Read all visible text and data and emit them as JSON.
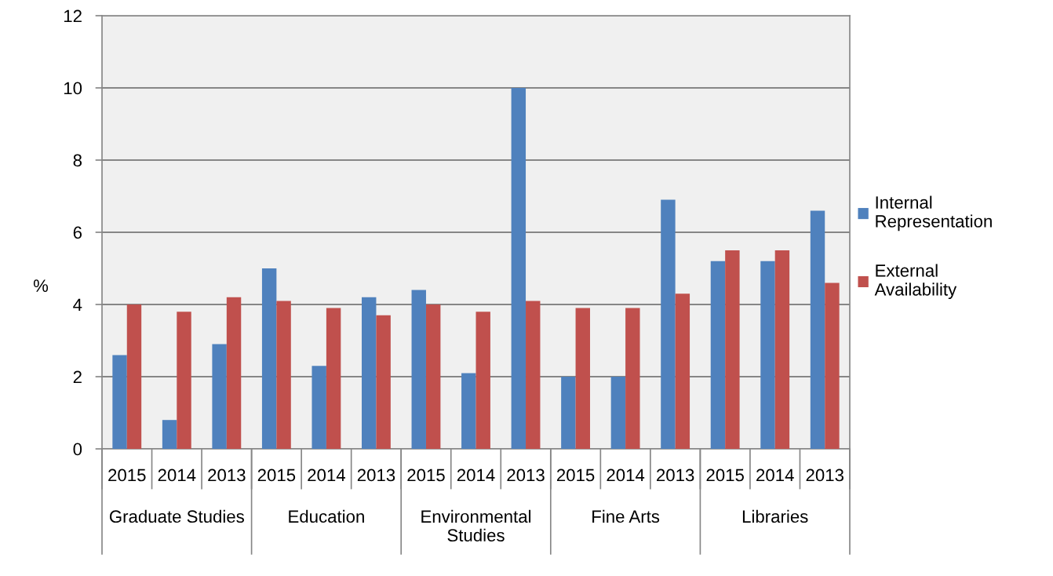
{
  "chart_data": {
    "type": "bar",
    "ylabel": "%",
    "categories": [
      "2015",
      "2014",
      "2013",
      "2015",
      "2014",
      "2013",
      "2015",
      "2014",
      "2013",
      "2015",
      "2014",
      "2013",
      "2015",
      "2014",
      "2013"
    ],
    "annotations": [
      "Graduate Studies",
      "Education",
      "Environmental\nStudies",
      "Fine Arts",
      "Libraries"
    ],
    "series": [
      {
        "name": "Internal\nRepresentation",
        "color": "#4f81bd",
        "values": [
          2.6,
          0.8,
          2.9,
          5.0,
          2.3,
          4.2,
          4.4,
          2.1,
          10.0,
          2.0,
          2.0,
          6.9,
          5.2,
          5.2,
          6.6
        ]
      },
      {
        "name": "External\nAvailability",
        "color": "#c0504d",
        "values": [
          4.0,
          3.8,
          4.2,
          4.1,
          3.9,
          3.7,
          4.0,
          3.8,
          4.1,
          3.9,
          3.9,
          4.3,
          5.5,
          5.5,
          4.6
        ]
      }
    ],
    "ylim": [
      0,
      12
    ],
    "yticks": [
      0,
      2,
      4,
      6,
      8,
      10,
      12
    ],
    "grid": "y",
    "legend": "right"
  }
}
